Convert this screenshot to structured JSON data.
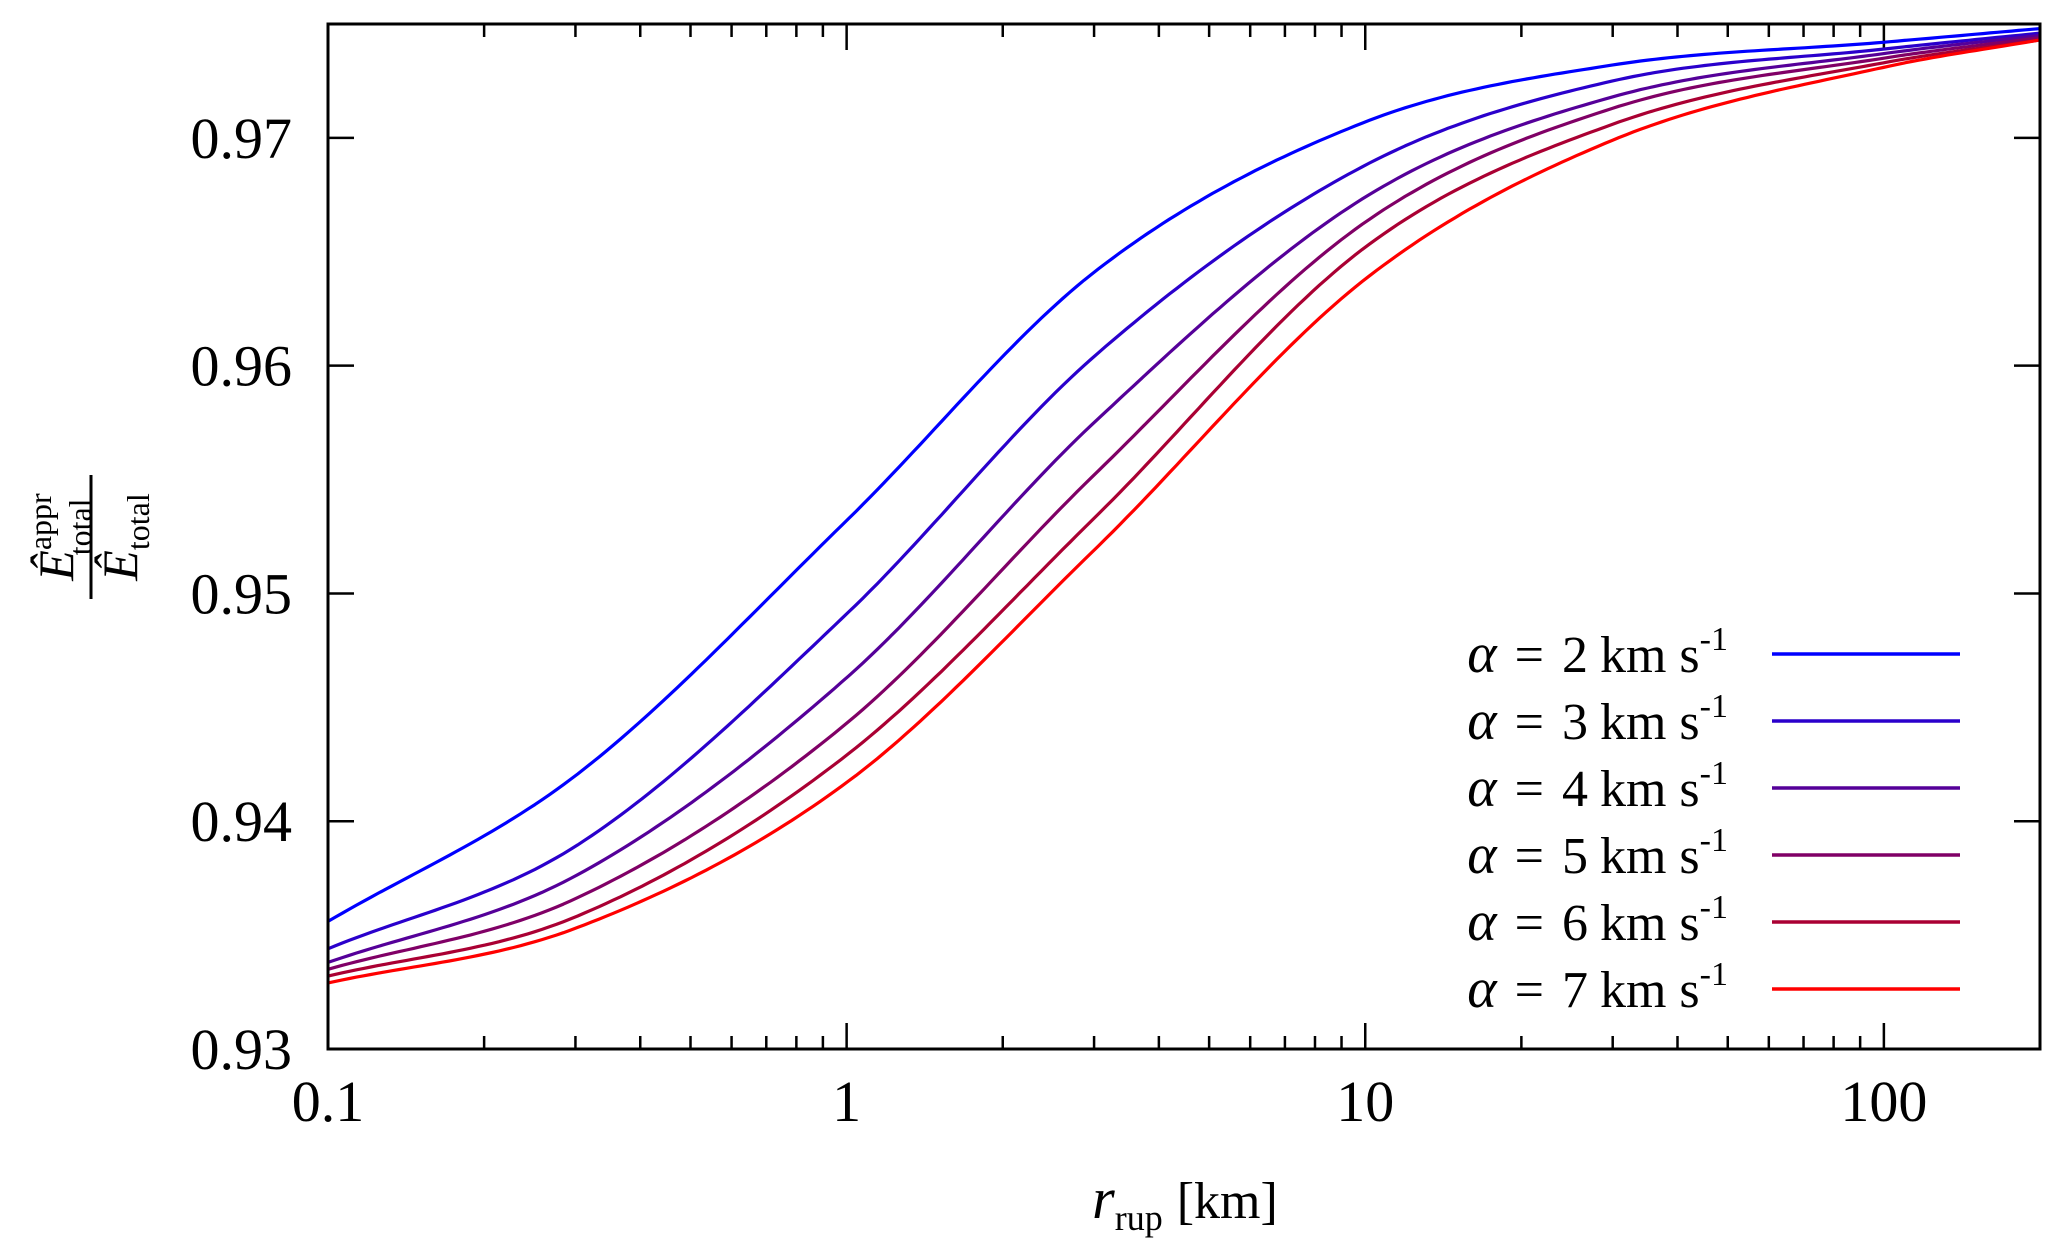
{
  "chart_data": {
    "type": "line",
    "title": "",
    "xlabel": {
      "var": "r",
      "sub": "rup",
      "unit": "[km]"
    },
    "ylabel": {
      "numerator": {
        "base": "Ê",
        "sup": "appr",
        "sub": "total"
      },
      "denominator": {
        "base": "Ê",
        "sub": "total"
      }
    },
    "xscale": "log",
    "xlim": [
      0.1,
      200
    ],
    "ylim": [
      0.93,
      0.975
    ],
    "xticks": [
      {
        "value": 0.1,
        "label": "0.1"
      },
      {
        "value": 1,
        "label": "1"
      },
      {
        "value": 10,
        "label": "10"
      },
      {
        "value": 100,
        "label": "100"
      }
    ],
    "yticks": [
      {
        "value": 0.93,
        "label": "0.93"
      },
      {
        "value": 0.94,
        "label": "0.94"
      },
      {
        "value": 0.95,
        "label": "0.95"
      },
      {
        "value": 0.96,
        "label": "0.96"
      },
      {
        "value": 0.97,
        "label": "0.97"
      }
    ],
    "grid": false,
    "mirror_ticks": true,
    "legend_position": "bottom-right",
    "x": [
      0.1,
      0.3,
      1,
      3,
      10,
      30,
      100,
      200
    ],
    "series": [
      {
        "name": "α = 2 km s-1",
        "alpha": "2",
        "color": "#0000ff",
        "values": [
          0.9356,
          0.942,
          0.9532,
          0.9641,
          0.9707,
          0.9732,
          0.9742,
          0.9748
        ]
      },
      {
        "name": "α = 3 km s-1",
        "alpha": "3",
        "color": "#2a00cc",
        "values": [
          0.9344,
          0.9389,
          0.9491,
          0.9604,
          0.9688,
          0.9725,
          0.9739,
          0.9746
        ]
      },
      {
        "name": "α = 4 km s-1",
        "alpha": "4",
        "color": "#550099",
        "values": [
          0.9338,
          0.9376,
          0.9463,
          0.9575,
          0.9674,
          0.9718,
          0.9737,
          0.9745
        ]
      },
      {
        "name": "α = 5 km s-1",
        "alpha": "5",
        "color": "#800066",
        "values": [
          0.9335,
          0.9366,
          0.9443,
          0.9552,
          0.9663,
          0.9713,
          0.9735,
          0.9744
        ]
      },
      {
        "name": "α = 6 km s-1",
        "alpha": "6",
        "color": "#aa0033",
        "values": [
          0.9332,
          0.9358,
          0.9429,
          0.9533,
          0.9652,
          0.9706,
          0.9733,
          0.9743
        ]
      },
      {
        "name": "α = 7 km s-1",
        "alpha": "7",
        "color": "#ff0000",
        "values": [
          0.9329,
          0.9353,
          0.9417,
          0.9519,
          0.9638,
          0.9699,
          0.9731,
          0.9743
        ]
      }
    ],
    "legend": {
      "symbol": "α",
      "equals": "=",
      "unit": "km s",
      "unit_sup": "-1"
    }
  }
}
